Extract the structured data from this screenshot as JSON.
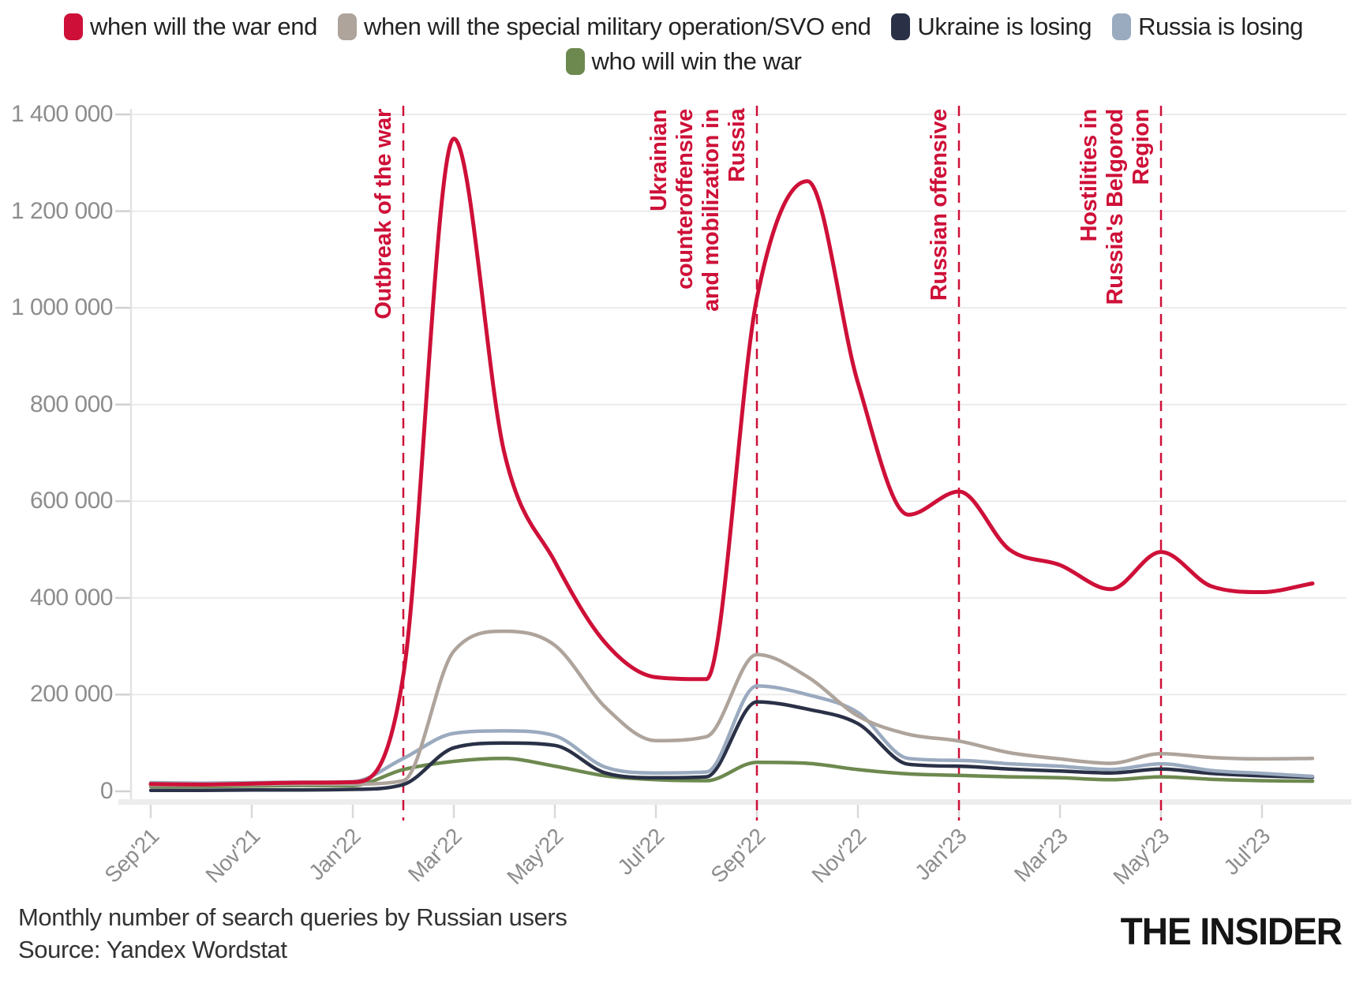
{
  "chart_data": {
    "type": "line",
    "title": "",
    "xlabel": "",
    "ylabel": "",
    "grid": "horizontal",
    "legend_position": "top",
    "ylim": [
      0,
      1400000
    ],
    "y_ticks": [
      0,
      200000,
      400000,
      600000,
      800000,
      1000000,
      1200000,
      1400000
    ],
    "y_tick_labels": [
      "0",
      "200 000",
      "400 000",
      "600 000",
      "800 000",
      "1 000 000",
      "1 200 000",
      "1 400 000"
    ],
    "x_tick_labels": [
      "Sep'21",
      "Nov'21",
      "Jan'22",
      "Mar'22",
      "May'22",
      "Jul'22",
      "Sep'22",
      "Nov'22",
      "Jan'23",
      "Mar'23",
      "May'23",
      "Jul'23"
    ],
    "months": [
      "Sep'21",
      "Oct'21",
      "Nov'21",
      "Dec'21",
      "Jan'22",
      "Feb'22",
      "Mar'22",
      "Apr'22",
      "May'22",
      "Jun'22",
      "Jul'22",
      "Aug'22",
      "Sep'22",
      "Oct'22",
      "Nov'22",
      "Dec'22",
      "Jan'23",
      "Feb'23",
      "Mar'23",
      "Apr'23",
      "May'23",
      "Jun'23",
      "Jul'23",
      "Aug'23"
    ],
    "series": [
      {
        "name": "when will the war end",
        "color": "#ce1038",
        "values": [
          15000,
          14000,
          16000,
          18000,
          19000,
          240000,
          1350000,
          700000,
          475000,
          307000,
          236000,
          232000,
          1020000,
          1262000,
          845000,
          572000,
          620000,
          500000,
          468000,
          418000,
          495000,
          424000,
          412000,
          430000
        ]
      },
      {
        "name": "when will the special military operation/SVO end",
        "color": "#aea49c",
        "values": [
          13000,
          13000,
          14000,
          15000,
          15000,
          22000,
          290000,
          331000,
          302000,
          174000,
          105000,
          113000,
          283000,
          237000,
          156000,
          118000,
          104000,
          80000,
          67000,
          58000,
          78000,
          70000,
          67000,
          68000
        ]
      },
      {
        "name": "Ukraine is losing",
        "color": "#2a3147",
        "values": [
          2000,
          2000,
          3000,
          3000,
          4000,
          14000,
          90000,
          100000,
          95000,
          38000,
          28000,
          30000,
          185000,
          170000,
          140000,
          56000,
          52000,
          46000,
          42000,
          38000,
          46000,
          37000,
          32000,
          29000
        ]
      },
      {
        "name": "Russia is losing",
        "color": "#9aaabf",
        "values": [
          18000,
          17000,
          18000,
          19000,
          20000,
          68000,
          120000,
          125000,
          115000,
          50000,
          38000,
          40000,
          218000,
          200000,
          163000,
          68000,
          64000,
          57000,
          52000,
          45000,
          57000,
          43000,
          37000,
          31000
        ]
      },
      {
        "name": "who will win the war",
        "color": "#6d894f",
        "values": [
          10000,
          10000,
          11000,
          12000,
          12000,
          45000,
          62000,
          68000,
          52000,
          32000,
          24000,
          22000,
          60000,
          58000,
          45000,
          36000,
          33000,
          30000,
          28000,
          24000,
          30000,
          25000,
          22000,
          21000
        ]
      }
    ],
    "annotations": [
      {
        "label": "Outbreak of the war",
        "lines": [
          "Outbreak of the war"
        ],
        "month": "Feb'22",
        "month_index": 5
      },
      {
        "label": "Ukrainian counteroffensive and mobilization in Russia",
        "lines": [
          "Ukrainian",
          "counteroffensive",
          "and mobilization in",
          "Russia"
        ],
        "month": "Sep'22",
        "month_index": 12
      },
      {
        "label": "Russian offensive",
        "lines": [
          "Russian offensive"
        ],
        "month": "Jan'23",
        "month_index": 16
      },
      {
        "label": "Hostilities in",
        "lines": [
          "Hostilities in",
          "Russia's Belgorod",
          "Region"
        ],
        "month": "May'23",
        "month_index": 20
      }
    ],
    "annotation_color": "#ce1038"
  },
  "footer": {
    "caption": "Monthly number of search queries by Russian users",
    "source": "Source: Yandex Wordstat",
    "logo": "THE INSIDER"
  }
}
